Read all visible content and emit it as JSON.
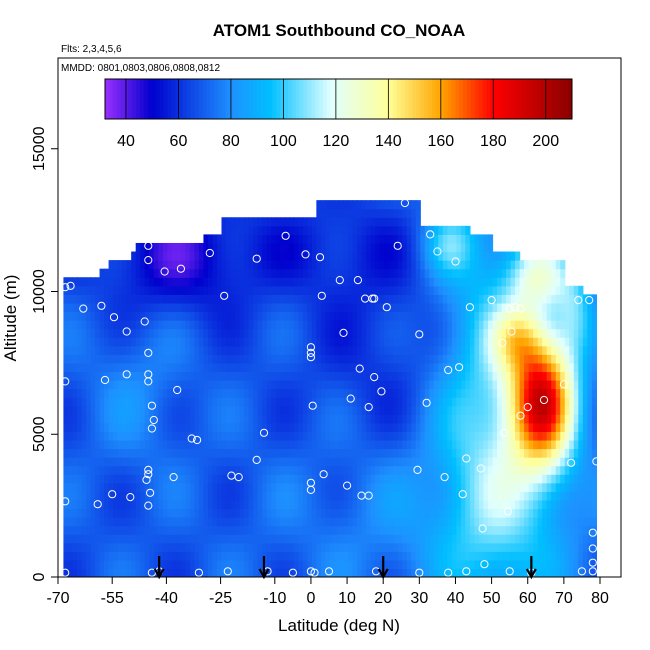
{
  "chart_data": {
    "type": "heatmap",
    "title": "ATOM1 Southbound CO_NOAA",
    "flights_note": "Flts: 2,3,4,5,6",
    "date_note": "MMDD: 0801,0803,0806,0808,0812",
    "xlabel": "Latitude (deg N)",
    "ylabel": "Altitude (m)",
    "xlim": [
      -70,
      85
    ],
    "ylim": [
      0,
      17500
    ],
    "x_ticks": [
      -70,
      -55,
      -40,
      -25,
      -10,
      0,
      10,
      20,
      30,
      40,
      50,
      60,
      70,
      80
    ],
    "y_ticks": [
      0,
      5000,
      10000,
      15000
    ],
    "colorbar": {
      "min": 32,
      "max": 210,
      "ticks": [
        40,
        60,
        80,
        100,
        120,
        140,
        160,
        180,
        200
      ],
      "colors": [
        "#9b30ff",
        "#0000cd",
        "#1e90ff",
        "#00bfff",
        "#e0ffff",
        "#ffff99",
        "#ffa500",
        "#ff0000",
        "#8b0000"
      ]
    },
    "arrows_latitude": [
      -42,
      -13,
      20,
      61
    ],
    "observations": [
      {
        "lat": -68,
        "alt": 10150
      },
      {
        "lat": -66.5,
        "alt": 10200
      },
      {
        "lat": -68,
        "alt": 6850
      },
      {
        "lat": -68,
        "alt": 2650
      },
      {
        "lat": -68,
        "alt": 150
      },
      {
        "lat": -63,
        "alt": 9400
      },
      {
        "lat": -58,
        "alt": 9500
      },
      {
        "lat": -59,
        "alt": 2550
      },
      {
        "lat": -57,
        "alt": 6900
      },
      {
        "lat": -54.5,
        "alt": 9100
      },
      {
        "lat": -55,
        "alt": 2900
      },
      {
        "lat": -51,
        "alt": 8600
      },
      {
        "lat": -51,
        "alt": 7100
      },
      {
        "lat": -50,
        "alt": 2800
      },
      {
        "lat": -46,
        "alt": 8950
      },
      {
        "lat": -45,
        "alt": 11600
      },
      {
        "lat": -45,
        "alt": 11100
      },
      {
        "lat": -45,
        "alt": 7850
      },
      {
        "lat": -45,
        "alt": 7100
      },
      {
        "lat": -45,
        "alt": 6850
      },
      {
        "lat": -44,
        "alt": 6000
      },
      {
        "lat": -43.5,
        "alt": 5500
      },
      {
        "lat": -44,
        "alt": 5200
      },
      {
        "lat": -45,
        "alt": 3750
      },
      {
        "lat": -45,
        "alt": 3600
      },
      {
        "lat": -45.5,
        "alt": 3400
      },
      {
        "lat": -44.5,
        "alt": 2950
      },
      {
        "lat": -45,
        "alt": 2500
      },
      {
        "lat": -44,
        "alt": 150
      },
      {
        "lat": -42,
        "alt": 200
      },
      {
        "lat": -40.5,
        "alt": 10700
      },
      {
        "lat": -36,
        "alt": 10800
      },
      {
        "lat": -37,
        "alt": 6550
      },
      {
        "lat": -38,
        "alt": 3500
      },
      {
        "lat": -33,
        "alt": 4850
      },
      {
        "lat": -31.5,
        "alt": 4800
      },
      {
        "lat": -31,
        "alt": 150
      },
      {
        "lat": -28,
        "alt": 11350
      },
      {
        "lat": -24,
        "alt": 9850
      },
      {
        "lat": -22,
        "alt": 3550
      },
      {
        "lat": -20,
        "alt": 3500
      },
      {
        "lat": -23,
        "alt": 200
      },
      {
        "lat": -15,
        "alt": 11150
      },
      {
        "lat": -15,
        "alt": 4100
      },
      {
        "lat": -13,
        "alt": 5050
      },
      {
        "lat": -12,
        "alt": 200
      },
      {
        "lat": -7,
        "alt": 11950
      },
      {
        "lat": -5,
        "alt": 150
      },
      {
        "lat": -1.5,
        "alt": 11300
      },
      {
        "lat": 0,
        "alt": 7850
      },
      {
        "lat": 0,
        "alt": 8050
      },
      {
        "lat": 0,
        "alt": 7700
      },
      {
        "lat": 0.5,
        "alt": 6000
      },
      {
        "lat": 0,
        "alt": 3300
      },
      {
        "lat": 0,
        "alt": 3050
      },
      {
        "lat": 0,
        "alt": 200
      },
      {
        "lat": 1,
        "alt": 150
      },
      {
        "lat": 2.5,
        "alt": 11200
      },
      {
        "lat": 3,
        "alt": 9850
      },
      {
        "lat": 3.5,
        "alt": 3600
      },
      {
        "lat": 5,
        "alt": 200
      },
      {
        "lat": 8,
        "alt": 10400
      },
      {
        "lat": 9,
        "alt": 8550
      },
      {
        "lat": 10,
        "alt": 3200
      },
      {
        "lat": 11,
        "alt": 6250
      },
      {
        "lat": 13,
        "alt": 10400
      },
      {
        "lat": 13.5,
        "alt": 7300
      },
      {
        "lat": 14,
        "alt": 2850
      },
      {
        "lat": 15,
        "alt": 9750
      },
      {
        "lat": 16,
        "alt": 2850
      },
      {
        "lat": 16,
        "alt": 5950
      },
      {
        "lat": 17,
        "alt": 9750
      },
      {
        "lat": 17.5,
        "alt": 9750
      },
      {
        "lat": 17.5,
        "alt": 7000
      },
      {
        "lat": 18,
        "alt": 200
      },
      {
        "lat": 19.5,
        "alt": 6500
      },
      {
        "lat": 21,
        "alt": 9450
      },
      {
        "lat": 24,
        "alt": 11600
      },
      {
        "lat": 26,
        "alt": 13100
      },
      {
        "lat": 29.5,
        "alt": 3750
      },
      {
        "lat": 30,
        "alt": 8500
      },
      {
        "lat": 30,
        "alt": 150
      },
      {
        "lat": 32,
        "alt": 6100
      },
      {
        "lat": 33,
        "alt": 12000
      },
      {
        "lat": 35,
        "alt": 11400
      },
      {
        "lat": 37,
        "alt": 3500
      },
      {
        "lat": 38,
        "alt": 7250
      },
      {
        "lat": 38,
        "alt": 150
      },
      {
        "lat": 40,
        "alt": 11050
      },
      {
        "lat": 41,
        "alt": 7350
      },
      {
        "lat": 42,
        "alt": 2900
      },
      {
        "lat": 43,
        "alt": 4150
      },
      {
        "lat": 43,
        "alt": 200
      },
      {
        "lat": 44,
        "alt": 9450
      },
      {
        "lat": 47,
        "alt": 3800
      },
      {
        "lat": 47.5,
        "alt": 1700
      },
      {
        "lat": 48,
        "alt": 450
      },
      {
        "lat": 50,
        "alt": 9700
      },
      {
        "lat": 53,
        "alt": 8200
      },
      {
        "lat": 53.5,
        "alt": 5050
      },
      {
        "lat": 54.5,
        "alt": 2300
      },
      {
        "lat": 55,
        "alt": 200
      },
      {
        "lat": 55,
        "alt": 9400
      },
      {
        "lat": 55.5,
        "alt": 8600
      },
      {
        "lat": 56.5,
        "alt": 9450
      },
      {
        "lat": 58,
        "alt": 9400
      },
      {
        "lat": 58,
        "alt": 5650
      },
      {
        "lat": 60,
        "alt": 5950
      },
      {
        "lat": 61,
        "alt": 150
      },
      {
        "lat": 64.5,
        "alt": 6200
      },
      {
        "lat": 70,
        "alt": 6750
      },
      {
        "lat": 72,
        "alt": 4000
      },
      {
        "lat": 74,
        "alt": 9700
      },
      {
        "lat": 75,
        "alt": 200
      },
      {
        "lat": 77,
        "alt": 9700
      },
      {
        "lat": 78,
        "alt": 1550
      },
      {
        "lat": 78,
        "alt": 1000
      },
      {
        "lat": 78,
        "alt": 500
      },
      {
        "lat": 78,
        "alt": 200
      },
      {
        "lat": 79,
        "alt": 4050
      }
    ]
  }
}
